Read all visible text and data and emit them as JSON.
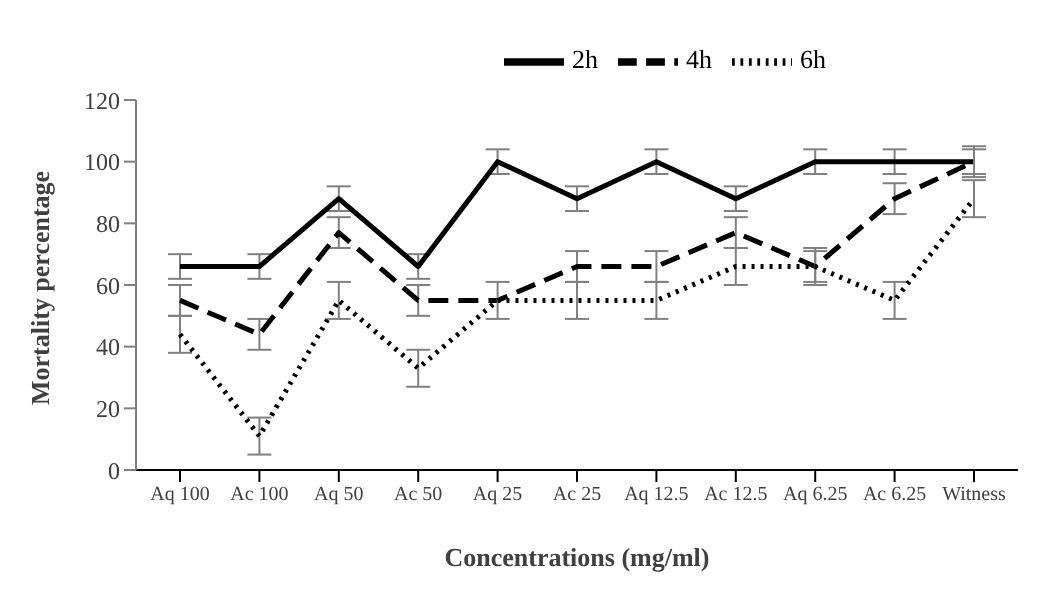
{
  "chart_data": {
    "type": "line",
    "xlabel": "Concentrations (mg/ml)",
    "ylabel": "Mortality percentage",
    "categories": [
      "Aq 100",
      "Ac 100",
      "Aq 50",
      "Ac 50",
      "Aq 25",
      "Ac 25",
      "Aq 12.5",
      "Ac 12.5",
      "Aq 6.25",
      "Ac 6.25",
      "Witness"
    ],
    "series": [
      {
        "name": "2h",
        "color": "#000000",
        "line_style": "solid",
        "values": [
          66,
          66,
          88,
          66,
          100,
          88,
          100,
          88,
          100,
          100,
          100
        ],
        "errors": [
          4,
          4,
          4,
          4,
          4,
          4,
          4,
          4,
          4,
          4,
          4
        ]
      },
      {
        "name": "4h",
        "color": "#000000",
        "line_style": "dashed",
        "values": [
          55,
          44,
          77,
          55,
          55,
          66,
          66,
          77,
          66,
          88,
          100
        ],
        "errors": [
          5,
          5,
          5,
          5,
          null,
          5,
          5,
          5,
          5,
          5,
          5
        ]
      },
      {
        "name": "6h",
        "color": "#000000",
        "line_style": "dotted",
        "values": [
          44,
          11,
          55,
          33,
          55,
          55,
          55,
          66,
          66,
          55,
          88
        ],
        "errors": [
          6,
          6,
          6,
          6,
          6,
          6,
          6,
          6,
          6,
          6,
          6
        ]
      }
    ],
    "ylim": [
      0,
      120
    ],
    "yticks": [
      0,
      20,
      40,
      60,
      80,
      100,
      120
    ],
    "grid": false,
    "legend": "top right",
    "marker": "none"
  }
}
